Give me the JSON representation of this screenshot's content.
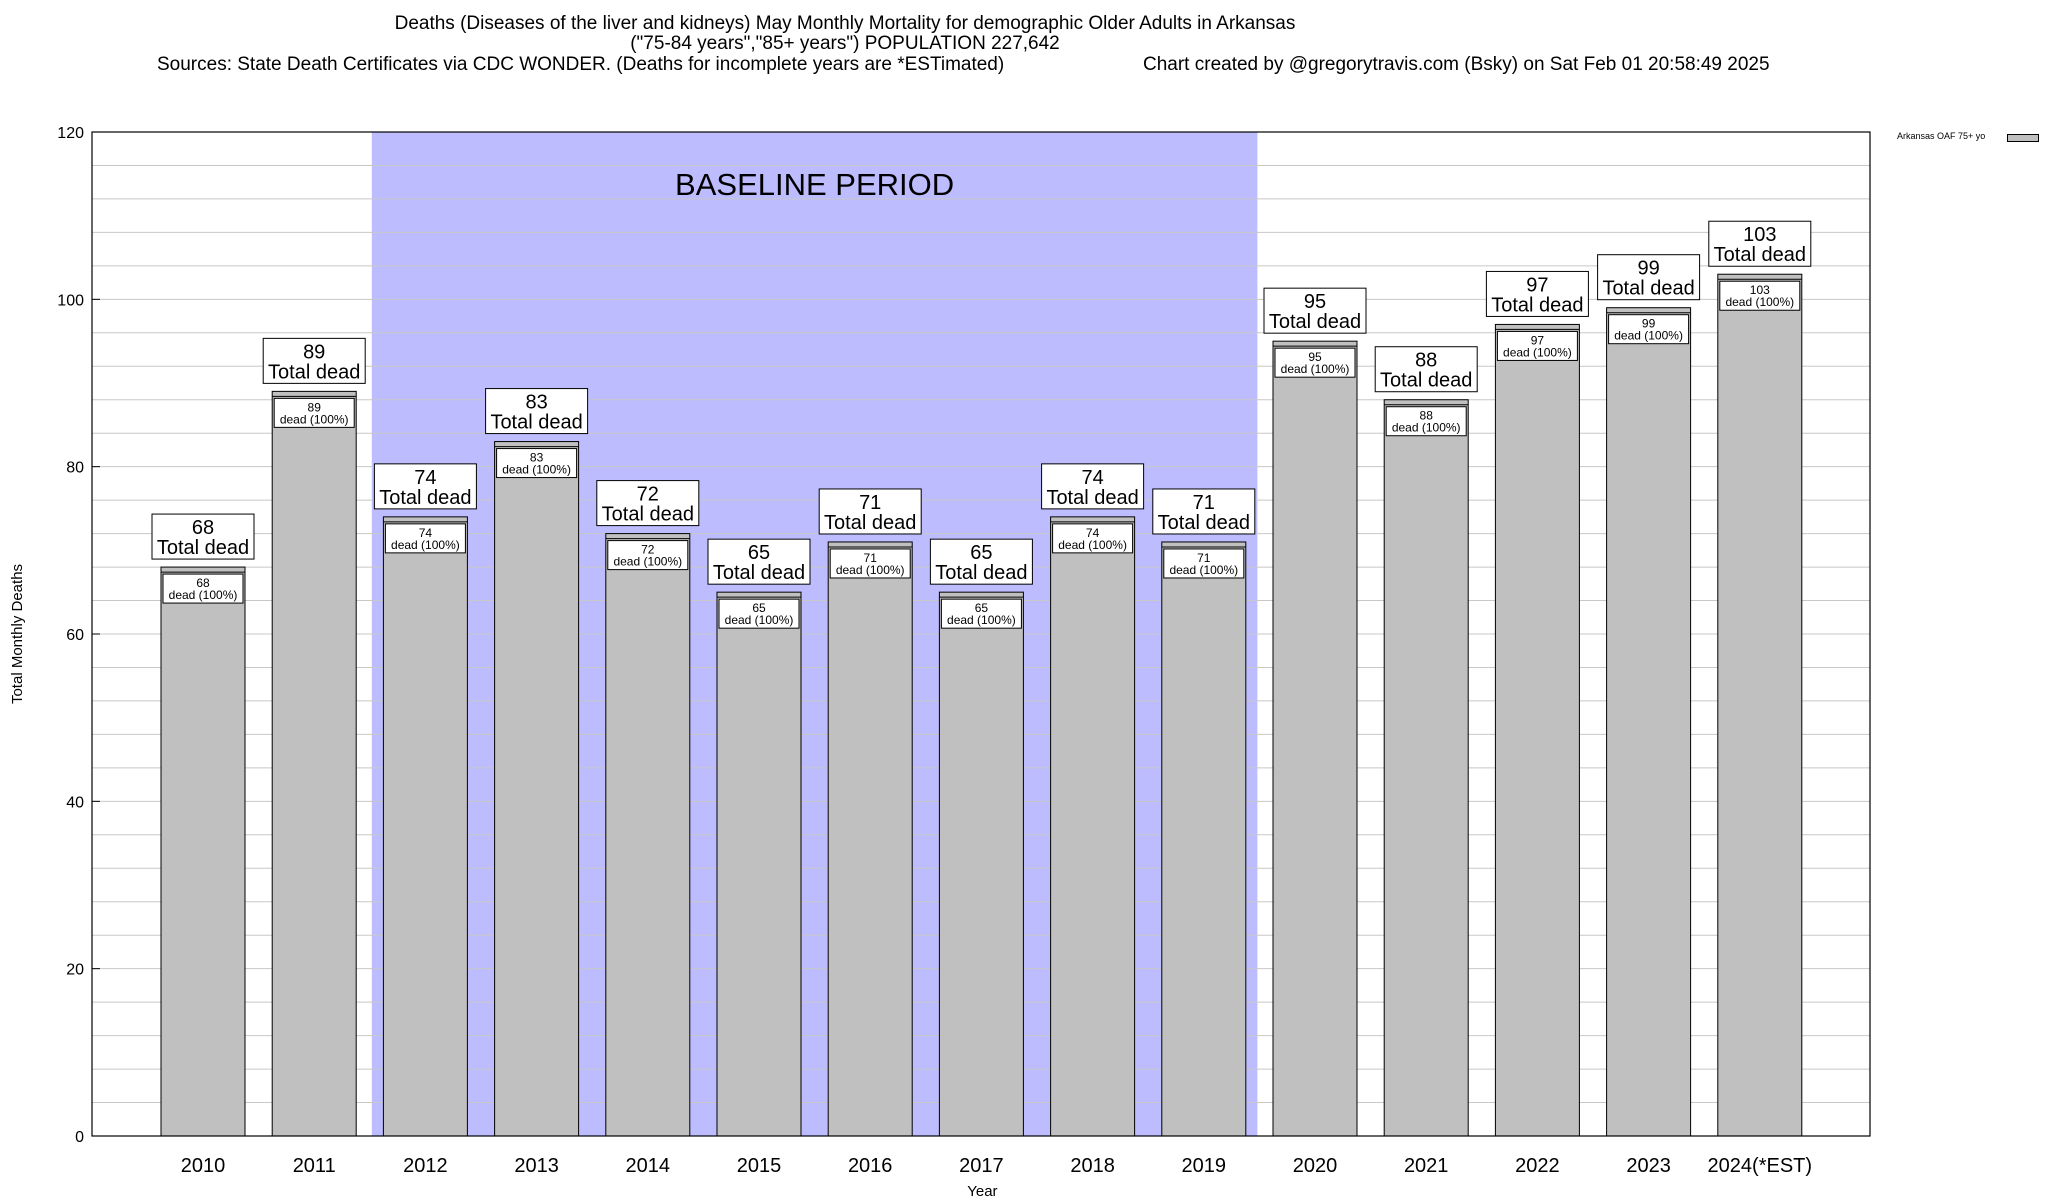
{
  "chart_data": {
    "type": "bar",
    "title": "Deaths (Diseases of the liver and kidneys) May Monthly Mortality for demographic Older Adults in Arkansas",
    "subtitle": "(\"75-84 years\",\"85+ years\") POPULATION 227,642",
    "source": "Sources: State Death Certificates via CDC WONDER. (Deaths for incomplete years are *ESTimated)",
    "credit": "Chart created by @gregorytravis.com (Bsky) on Sat Feb 01 20:58:49 2025",
    "xlabel": "Year",
    "ylabel": "Total Monthly Deaths",
    "ylim": [
      0,
      120
    ],
    "yticks": [
      0,
      20,
      40,
      60,
      80,
      100,
      120
    ],
    "minor_step": 4,
    "grid": true,
    "legend": {
      "label": "Arkansas OAF 75+ yo",
      "position": "top-right"
    },
    "baseline": {
      "label": "BASELINE PERIOD",
      "from": "2012",
      "to": "2019",
      "color": "#bcbcff"
    },
    "bar_color": "#c0c0c0",
    "top_label_suffix": "Total dead",
    "inner_label_suffix": "dead (100%)",
    "categories": [
      "2010",
      "2011",
      "2012",
      "2013",
      "2014",
      "2015",
      "2016",
      "2017",
      "2018",
      "2019",
      "2020",
      "2021",
      "2022",
      "2023",
      "2024(*EST)"
    ],
    "values": [
      68,
      89,
      74,
      83,
      72,
      65,
      71,
      65,
      74,
      71,
      95,
      88,
      97,
      99,
      103
    ]
  }
}
